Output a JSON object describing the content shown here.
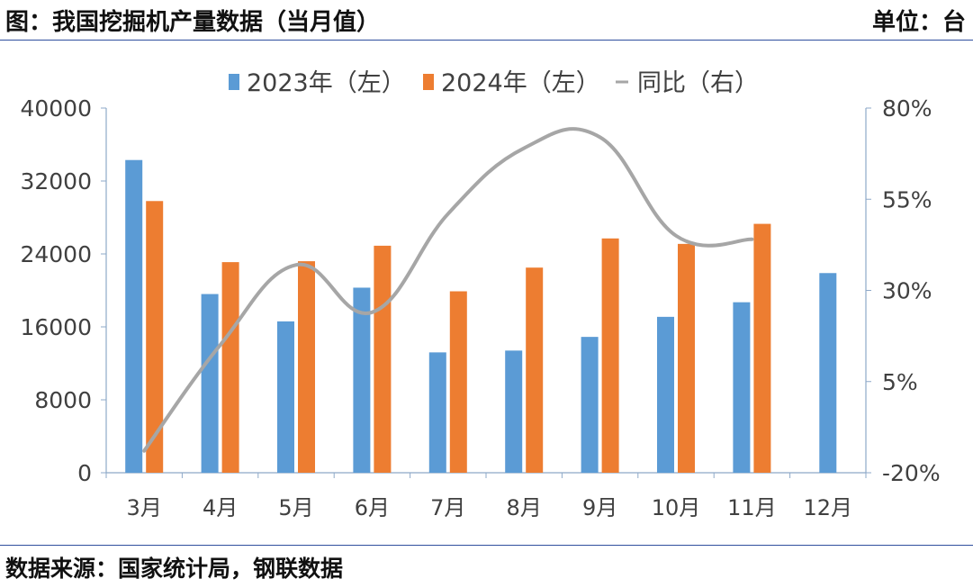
{
  "header": {
    "title": "图：我国挖掘机产量数据（当月值）",
    "unit": "单位：台"
  },
  "footer": {
    "source": "数据来源：国家统计局，钢联数据"
  },
  "colors": {
    "series_2023": "#5b9bd5",
    "series_2024": "#ed7d31",
    "series_yoy": "#a6a6a6",
    "axis": "#8ea9c8",
    "rule": "#2f4f9e"
  },
  "chart_data": {
    "type": "bar",
    "categories": [
      "3月",
      "4月",
      "5月",
      "6月",
      "7月",
      "8月",
      "9月",
      "10月",
      "11月",
      "12月"
    ],
    "series": [
      {
        "name": "2023年（左）",
        "type": "bar",
        "axis": "left",
        "values": [
          34300,
          19600,
          16600,
          20300,
          13200,
          13400,
          14900,
          17100,
          18700,
          21900
        ]
      },
      {
        "name": "2024年（左）",
        "type": "bar",
        "axis": "left",
        "values": [
          29800,
          23100,
          23200,
          24900,
          19900,
          22500,
          25700,
          25100,
          27300,
          null
        ]
      },
      {
        "name": "同比（右）",
        "type": "line",
        "axis": "right",
        "unit": "%",
        "values": [
          -14,
          15,
          37,
          24,
          51,
          69,
          72,
          45,
          44,
          null
        ]
      }
    ],
    "left_axis": {
      "ylim": [
        0,
        40000
      ],
      "ticks": [
        "0",
        "8000",
        "16000",
        "24000",
        "32000",
        "40000"
      ]
    },
    "right_axis": {
      "ylim": [
        -20,
        80
      ],
      "ticks": [
        "-20%",
        "5%",
        "30%",
        "55%",
        "80%"
      ]
    },
    "legend": "top",
    "grid": false
  }
}
